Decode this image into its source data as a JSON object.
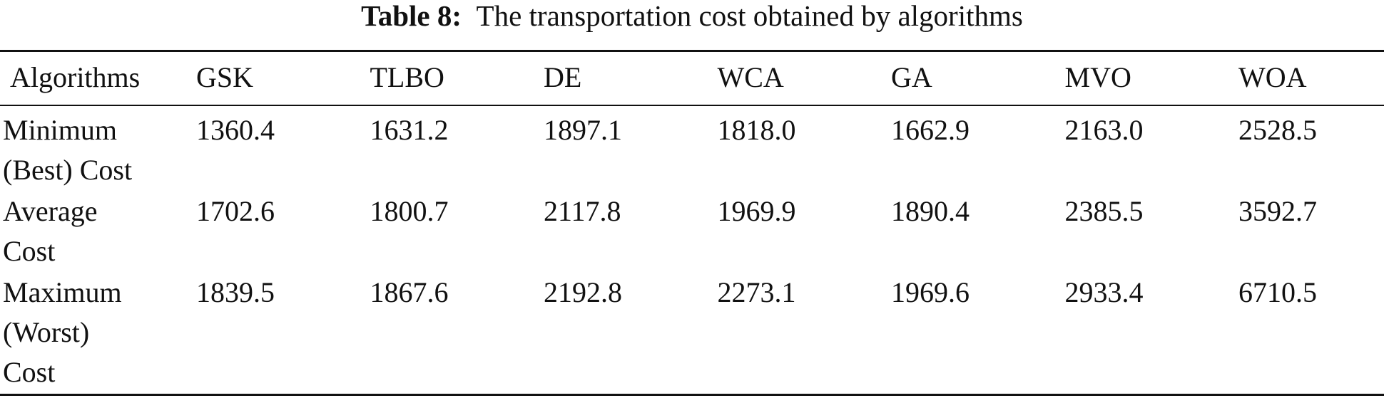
{
  "caption": {
    "label": "Table 8:",
    "text": "The transportation cost obtained by algorithms"
  },
  "table": {
    "columns": [
      "Algorithms",
      "GSK",
      "TLBO",
      "DE",
      "WCA",
      "GA",
      "MVO",
      "WOA"
    ],
    "rows": [
      {
        "label": " Minimum\n(Best) Cost",
        "values": [
          "1360.4",
          "1631.2",
          "1897.1",
          "1818.0",
          "1662.9",
          "2163.0",
          "2528.5"
        ]
      },
      {
        "label": "Average\nCost",
        "values": [
          "1702.6",
          "1800.7",
          "2117.8",
          "1969.9",
          "1890.4",
          "2385.5",
          "3592.7"
        ]
      },
      {
        "label": "Maximum\n(Worst)\nCost",
        "values": [
          "1839.5",
          "1867.6",
          "2192.8",
          "2273.1",
          "1969.6",
          "2933.4",
          "6710.5"
        ]
      }
    ]
  }
}
